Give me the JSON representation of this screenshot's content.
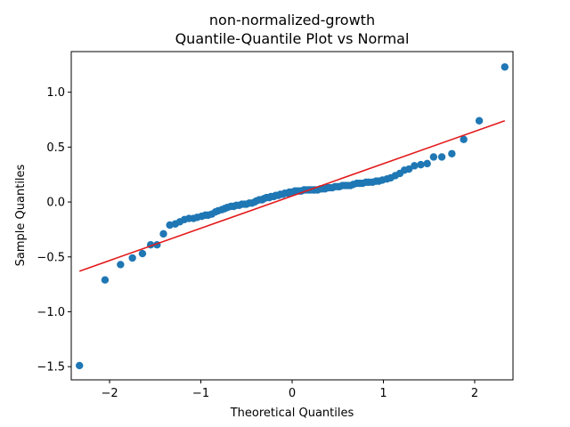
{
  "chart_data": {
    "type": "scatter",
    "title": "non-normalized-growth",
    "subtitle": "Quantile-Quantile Plot vs Normal",
    "xlabel": "Theoretical Quantiles",
    "ylabel": "Sample Quantiles",
    "xlim": [
      -2.42,
      2.42
    ],
    "ylim": [
      -1.62,
      1.37
    ],
    "xticks": [
      -2,
      -1,
      0,
      1,
      2
    ],
    "xtick_labels": [
      "−2",
      "−1",
      "0",
      "1",
      "2"
    ],
    "yticks": [
      -1.5,
      -1.0,
      -0.5,
      0.0,
      0.5,
      1.0
    ],
    "ytick_labels": [
      "−1.5",
      "−1.0",
      "−0.5",
      "0.0",
      "0.5",
      "1.0"
    ],
    "grid": false,
    "point_color": "#1f77b4",
    "line_color": "#e31a1c",
    "reference_line": {
      "x": [
        -2.33,
        2.33
      ],
      "y": [
        -0.63,
        0.74
      ]
    },
    "points": [
      [
        -2.33,
        -1.49
      ],
      [
        -2.05,
        -0.71
      ],
      [
        -1.88,
        -0.57
      ],
      [
        -1.75,
        -0.51
      ],
      [
        -1.64,
        -0.47
      ],
      [
        -1.55,
        -0.39
      ],
      [
        -1.48,
        -0.39
      ],
      [
        -1.41,
        -0.29
      ],
      [
        -1.34,
        -0.21
      ],
      [
        -1.28,
        -0.2
      ],
      [
        -1.23,
        -0.18
      ],
      [
        -1.18,
        -0.16
      ],
      [
        -1.13,
        -0.15
      ],
      [
        -1.08,
        -0.15
      ],
      [
        -1.04,
        -0.14
      ],
      [
        -0.99,
        -0.13
      ],
      [
        -0.95,
        -0.12
      ],
      [
        -0.92,
        -0.12
      ],
      [
        -0.88,
        -0.11
      ],
      [
        -0.84,
        -0.09
      ],
      [
        -0.81,
        -0.08
      ],
      [
        -0.77,
        -0.07
      ],
      [
        -0.74,
        -0.06
      ],
      [
        -0.71,
        -0.05
      ],
      [
        -0.67,
        -0.04
      ],
      [
        -0.64,
        -0.04
      ],
      [
        -0.61,
        -0.03
      ],
      [
        -0.58,
        -0.03
      ],
      [
        -0.55,
        -0.02
      ],
      [
        -0.52,
        -0.02
      ],
      [
        -0.5,
        -0.02
      ],
      [
        -0.47,
        -0.01
      ],
      [
        -0.44,
        -0.01
      ],
      [
        -0.41,
        0.0
      ],
      [
        -0.39,
        0.01
      ],
      [
        -0.36,
        0.02
      ],
      [
        -0.33,
        0.02
      ],
      [
        -0.31,
        0.03
      ],
      [
        -0.28,
        0.04
      ],
      [
        -0.25,
        0.04
      ],
      [
        -0.23,
        0.05
      ],
      [
        -0.2,
        0.05
      ],
      [
        -0.18,
        0.06
      ],
      [
        -0.15,
        0.06
      ],
      [
        -0.13,
        0.07
      ],
      [
        -0.1,
        0.07
      ],
      [
        -0.08,
        0.08
      ],
      [
        -0.05,
        0.08
      ],
      [
        -0.03,
        0.09
      ],
      [
        0.0,
        0.09
      ],
      [
        0.03,
        0.1
      ],
      [
        0.05,
        0.1
      ],
      [
        0.08,
        0.1
      ],
      [
        0.1,
        0.1
      ],
      [
        0.13,
        0.11
      ],
      [
        0.15,
        0.11
      ],
      [
        0.18,
        0.11
      ],
      [
        0.2,
        0.11
      ],
      [
        0.23,
        0.11
      ],
      [
        0.25,
        0.11
      ],
      [
        0.28,
        0.11
      ],
      [
        0.31,
        0.12
      ],
      [
        0.33,
        0.12
      ],
      [
        0.36,
        0.12
      ],
      [
        0.39,
        0.13
      ],
      [
        0.41,
        0.13
      ],
      [
        0.44,
        0.13
      ],
      [
        0.47,
        0.14
      ],
      [
        0.5,
        0.14
      ],
      [
        0.52,
        0.14
      ],
      [
        0.55,
        0.15
      ],
      [
        0.58,
        0.15
      ],
      [
        0.61,
        0.15
      ],
      [
        0.64,
        0.15
      ],
      [
        0.67,
        0.16
      ],
      [
        0.71,
        0.17
      ],
      [
        0.74,
        0.17
      ],
      [
        0.77,
        0.17
      ],
      [
        0.81,
        0.18
      ],
      [
        0.84,
        0.18
      ],
      [
        0.88,
        0.18
      ],
      [
        0.92,
        0.19
      ],
      [
        0.95,
        0.19
      ],
      [
        0.99,
        0.2
      ],
      [
        1.04,
        0.21
      ],
      [
        1.08,
        0.22
      ],
      [
        1.13,
        0.24
      ],
      [
        1.18,
        0.26
      ],
      [
        1.23,
        0.29
      ],
      [
        1.28,
        0.3
      ],
      [
        1.34,
        0.33
      ],
      [
        1.41,
        0.34
      ],
      [
        1.48,
        0.35
      ],
      [
        1.55,
        0.41
      ],
      [
        1.64,
        0.41
      ],
      [
        1.75,
        0.44
      ],
      [
        1.88,
        0.57
      ],
      [
        2.05,
        0.74
      ],
      [
        2.33,
        1.23
      ]
    ]
  }
}
